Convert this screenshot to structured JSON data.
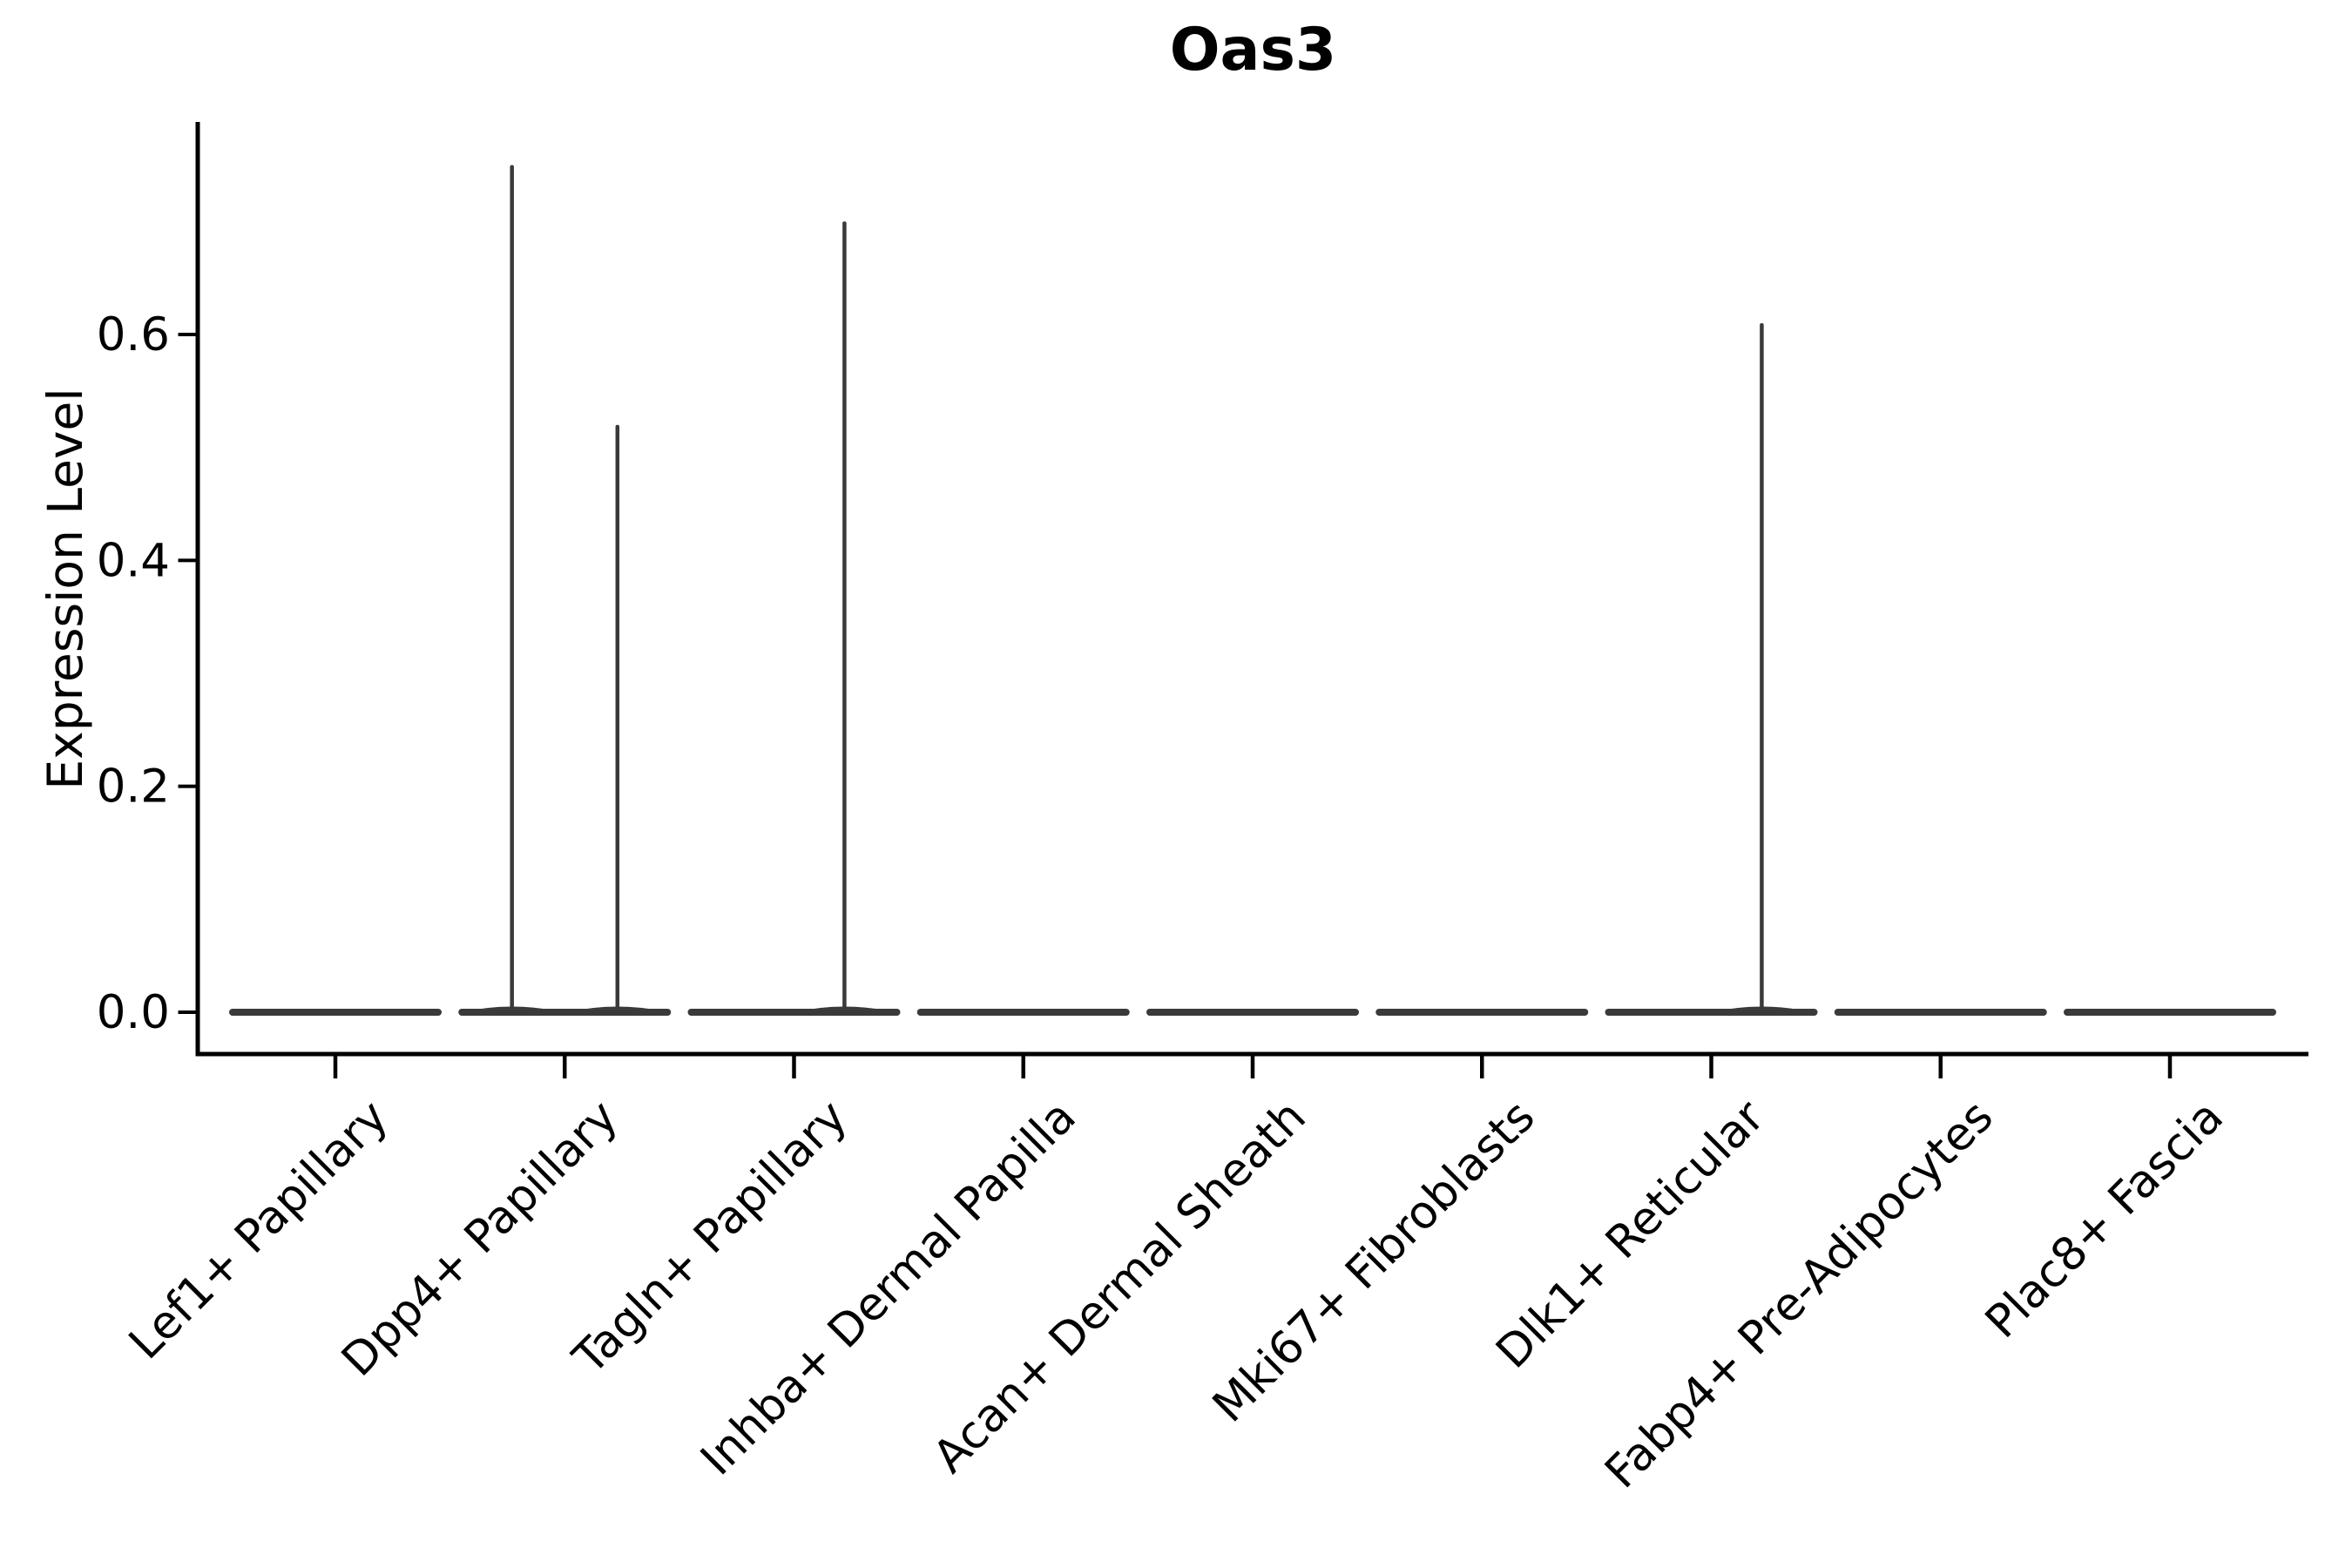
{
  "figure": {
    "background": "#ffffff"
  },
  "chart_data": {
    "type": "violin",
    "title": "Oas3",
    "xlabel": "",
    "ylabel": "Expression Level",
    "yticks": [
      0.0,
      0.2,
      0.4,
      0.6
    ],
    "ytick_labels": [
      "0.0",
      "0.2",
      "0.4",
      "0.6"
    ],
    "ylim": [
      -0.037,
      0.788
    ],
    "grid": false,
    "legend": "none",
    "categories": [
      "Lef1+ Papillary",
      "Dpp4+ Papillary",
      "Tagln+ Papillary",
      "Inhba+ Dermal Papilla",
      "Acan+ Dermal Sheath",
      "Mki67+ Fibroblasts",
      "Dlk1+ Reticular",
      "Fabp4+ Pre-Adipocytes",
      "Plac8+ Fascia"
    ],
    "violins": [
      {
        "category": "Lef1+ Papillary",
        "baseline_value": 0.0,
        "max": 0.0,
        "spikes": []
      },
      {
        "category": "Dpp4+ Papillary",
        "baseline_value": 0.0,
        "max": 0.75,
        "spikes": [
          {
            "offset": -0.23,
            "value": 0.75
          },
          {
            "offset": 0.23,
            "value": 0.52
          }
        ]
      },
      {
        "category": "Tagln+ Papillary",
        "baseline_value": 0.0,
        "max": 0.7,
        "spikes": [
          {
            "offset": 0.22,
            "value": 0.7
          }
        ]
      },
      {
        "category": "Inhba+ Dermal Papilla",
        "baseline_value": 0.0,
        "max": 0.0,
        "spikes": []
      },
      {
        "category": "Acan+ Dermal Sheath",
        "baseline_value": 0.0,
        "max": 0.0,
        "spikes": []
      },
      {
        "category": "Mki67+ Fibroblasts",
        "baseline_value": 0.0,
        "max": 0.0,
        "spikes": []
      },
      {
        "category": "Dlk1+ Reticular",
        "baseline_value": 0.0,
        "max": 0.61,
        "spikes": [
          {
            "offset": 0.22,
            "value": 0.61
          }
        ]
      },
      {
        "category": "Fabp4+ Pre-Adipocytes",
        "baseline_value": 0.0,
        "max": 0.0,
        "spikes": []
      },
      {
        "category": "Plac8+ Fascia",
        "baseline_value": 0.0,
        "max": 0.0,
        "spikes": []
      }
    ],
    "violin_width_fraction": 0.92,
    "colors": {
      "violin": "#3a3a3a",
      "axis": "#000000",
      "text": "#000000",
      "background": "#ffffff"
    }
  }
}
